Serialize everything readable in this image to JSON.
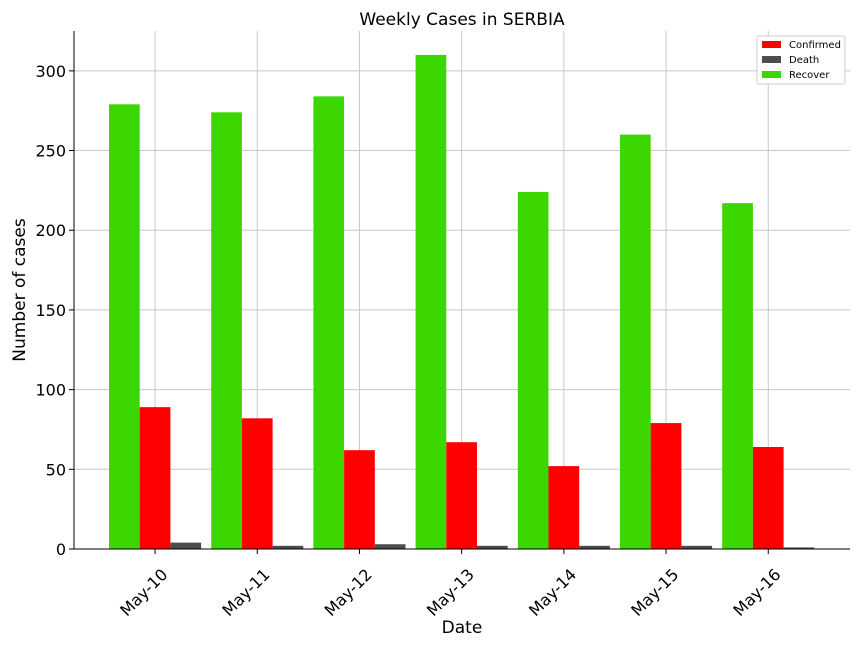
{
  "chart_data": {
    "type": "bar",
    "title": "Weekly Cases in SERBIA",
    "xlabel": "Date",
    "ylabel": "Number of cases",
    "categories": [
      "May-10",
      "May-11",
      "May-12",
      "May-13",
      "May-14",
      "May-15",
      "May-16"
    ],
    "series": [
      {
        "name": "Recover",
        "color": "#3cd600",
        "values": [
          279,
          274,
          284,
          310,
          224,
          260,
          217
        ]
      },
      {
        "name": "Confirmed",
        "color": "#ff0000",
        "values": [
          89,
          82,
          62,
          67,
          52,
          79,
          64
        ]
      },
      {
        "name": "Death",
        "color": "#4d4d4d",
        "values": [
          4,
          2,
          3,
          2,
          2,
          2,
          1
        ]
      }
    ],
    "legend_order": [
      "Confirmed",
      "Death",
      "Recover"
    ],
    "ylim": [
      0,
      325
    ],
    "yticks": [
      0,
      50,
      100,
      150,
      200,
      250,
      300
    ],
    "grid": true,
    "legend_position": "top-right"
  }
}
